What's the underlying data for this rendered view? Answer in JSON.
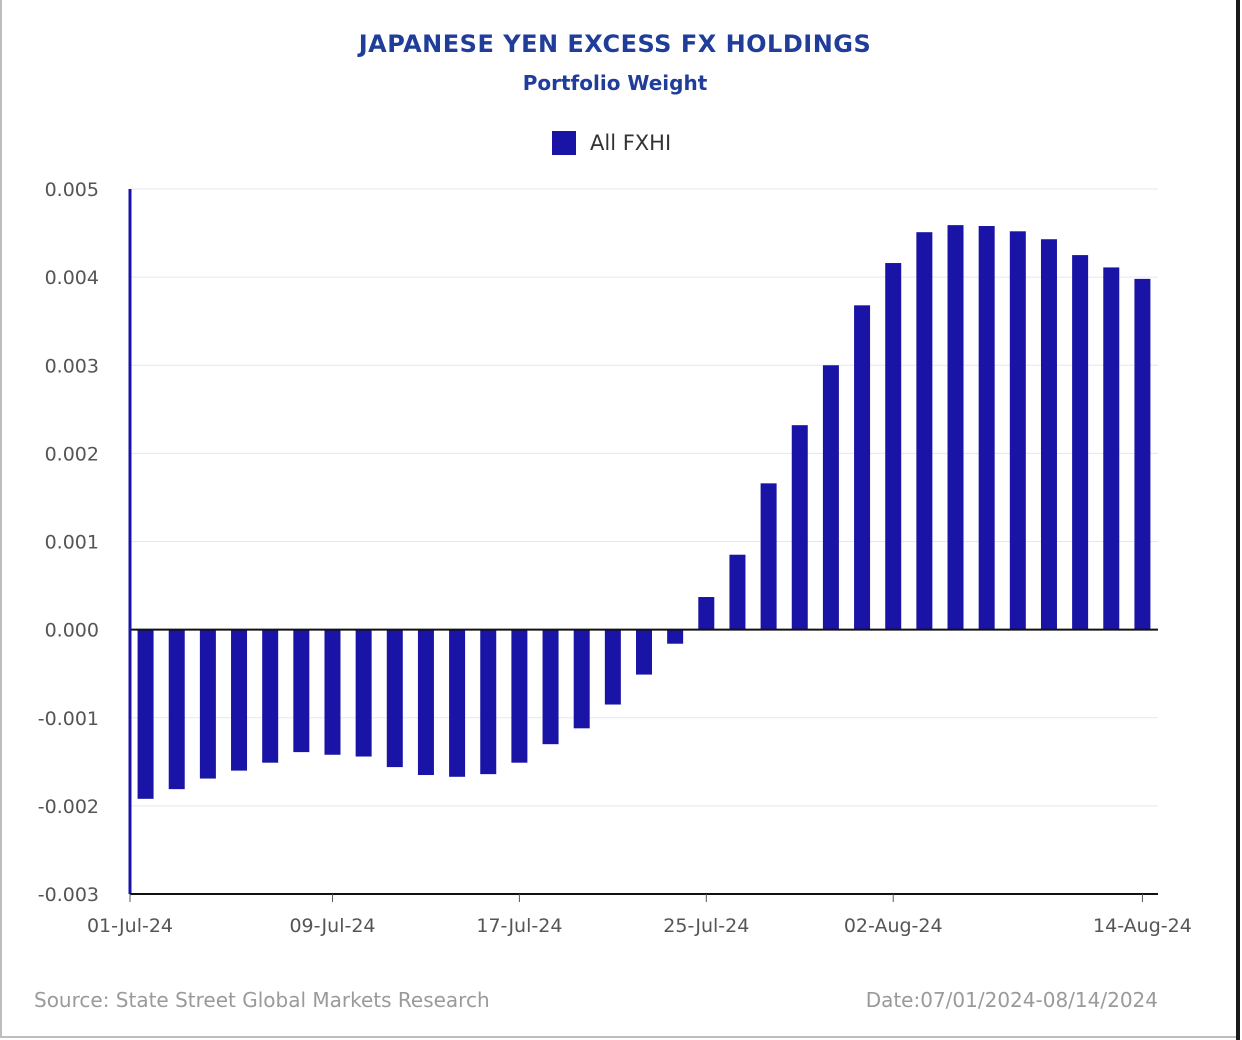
{
  "title": "JAPANESE YEN EXCESS FX HOLDINGS",
  "subtitle": "Portfolio Weight",
  "footer": {
    "source": "Source: State Street Global Markets Research",
    "date_range": "Date:07/01/2024-08/14/2024"
  },
  "colors": {
    "bar": "#1a14a6",
    "title": "#1f3d99",
    "grid": "#e3e7ef",
    "axis_text": "#555555"
  },
  "chart_data": {
    "type": "bar",
    "title": "JAPANESE YEN EXCESS FX HOLDINGS",
    "subtitle": "Portfolio Weight",
    "legend": {
      "position": "top-center",
      "entries": [
        "All FXHI"
      ]
    },
    "ylim": [
      -0.003,
      0.005
    ],
    "yticks": [
      "0.005",
      "0.004",
      "0.003",
      "0.002",
      "0.001",
      "0.000",
      "-0.001",
      "-0.002",
      "-0.003"
    ],
    "grid": true,
    "xticks": [
      {
        "label": "01-Jul-24",
        "index": 0
      },
      {
        "label": "09-Jul-24",
        "index": 6
      },
      {
        "label": "17-Jul-24",
        "index": 12
      },
      {
        "label": "25-Jul-24",
        "index": 18
      },
      {
        "label": "02-Aug-24",
        "index": 24
      },
      {
        "label": "14-Aug-24",
        "index": 32
      }
    ],
    "series": [
      {
        "name": "All FXHI",
        "values": [
          -0.00192,
          -0.00181,
          -0.00169,
          -0.0016,
          -0.00151,
          -0.00139,
          -0.00142,
          -0.00144,
          -0.00156,
          -0.00165,
          -0.00167,
          -0.00164,
          -0.00151,
          -0.0013,
          -0.00112,
          -0.00085,
          -0.00051,
          -0.00016,
          0.00037,
          0.00085,
          0.00166,
          0.00232,
          0.003,
          0.00368,
          0.00416,
          0.00451,
          0.00459,
          0.00458,
          0.00452,
          0.00443,
          0.00425,
          0.00411,
          0.00398
        ]
      }
    ]
  }
}
